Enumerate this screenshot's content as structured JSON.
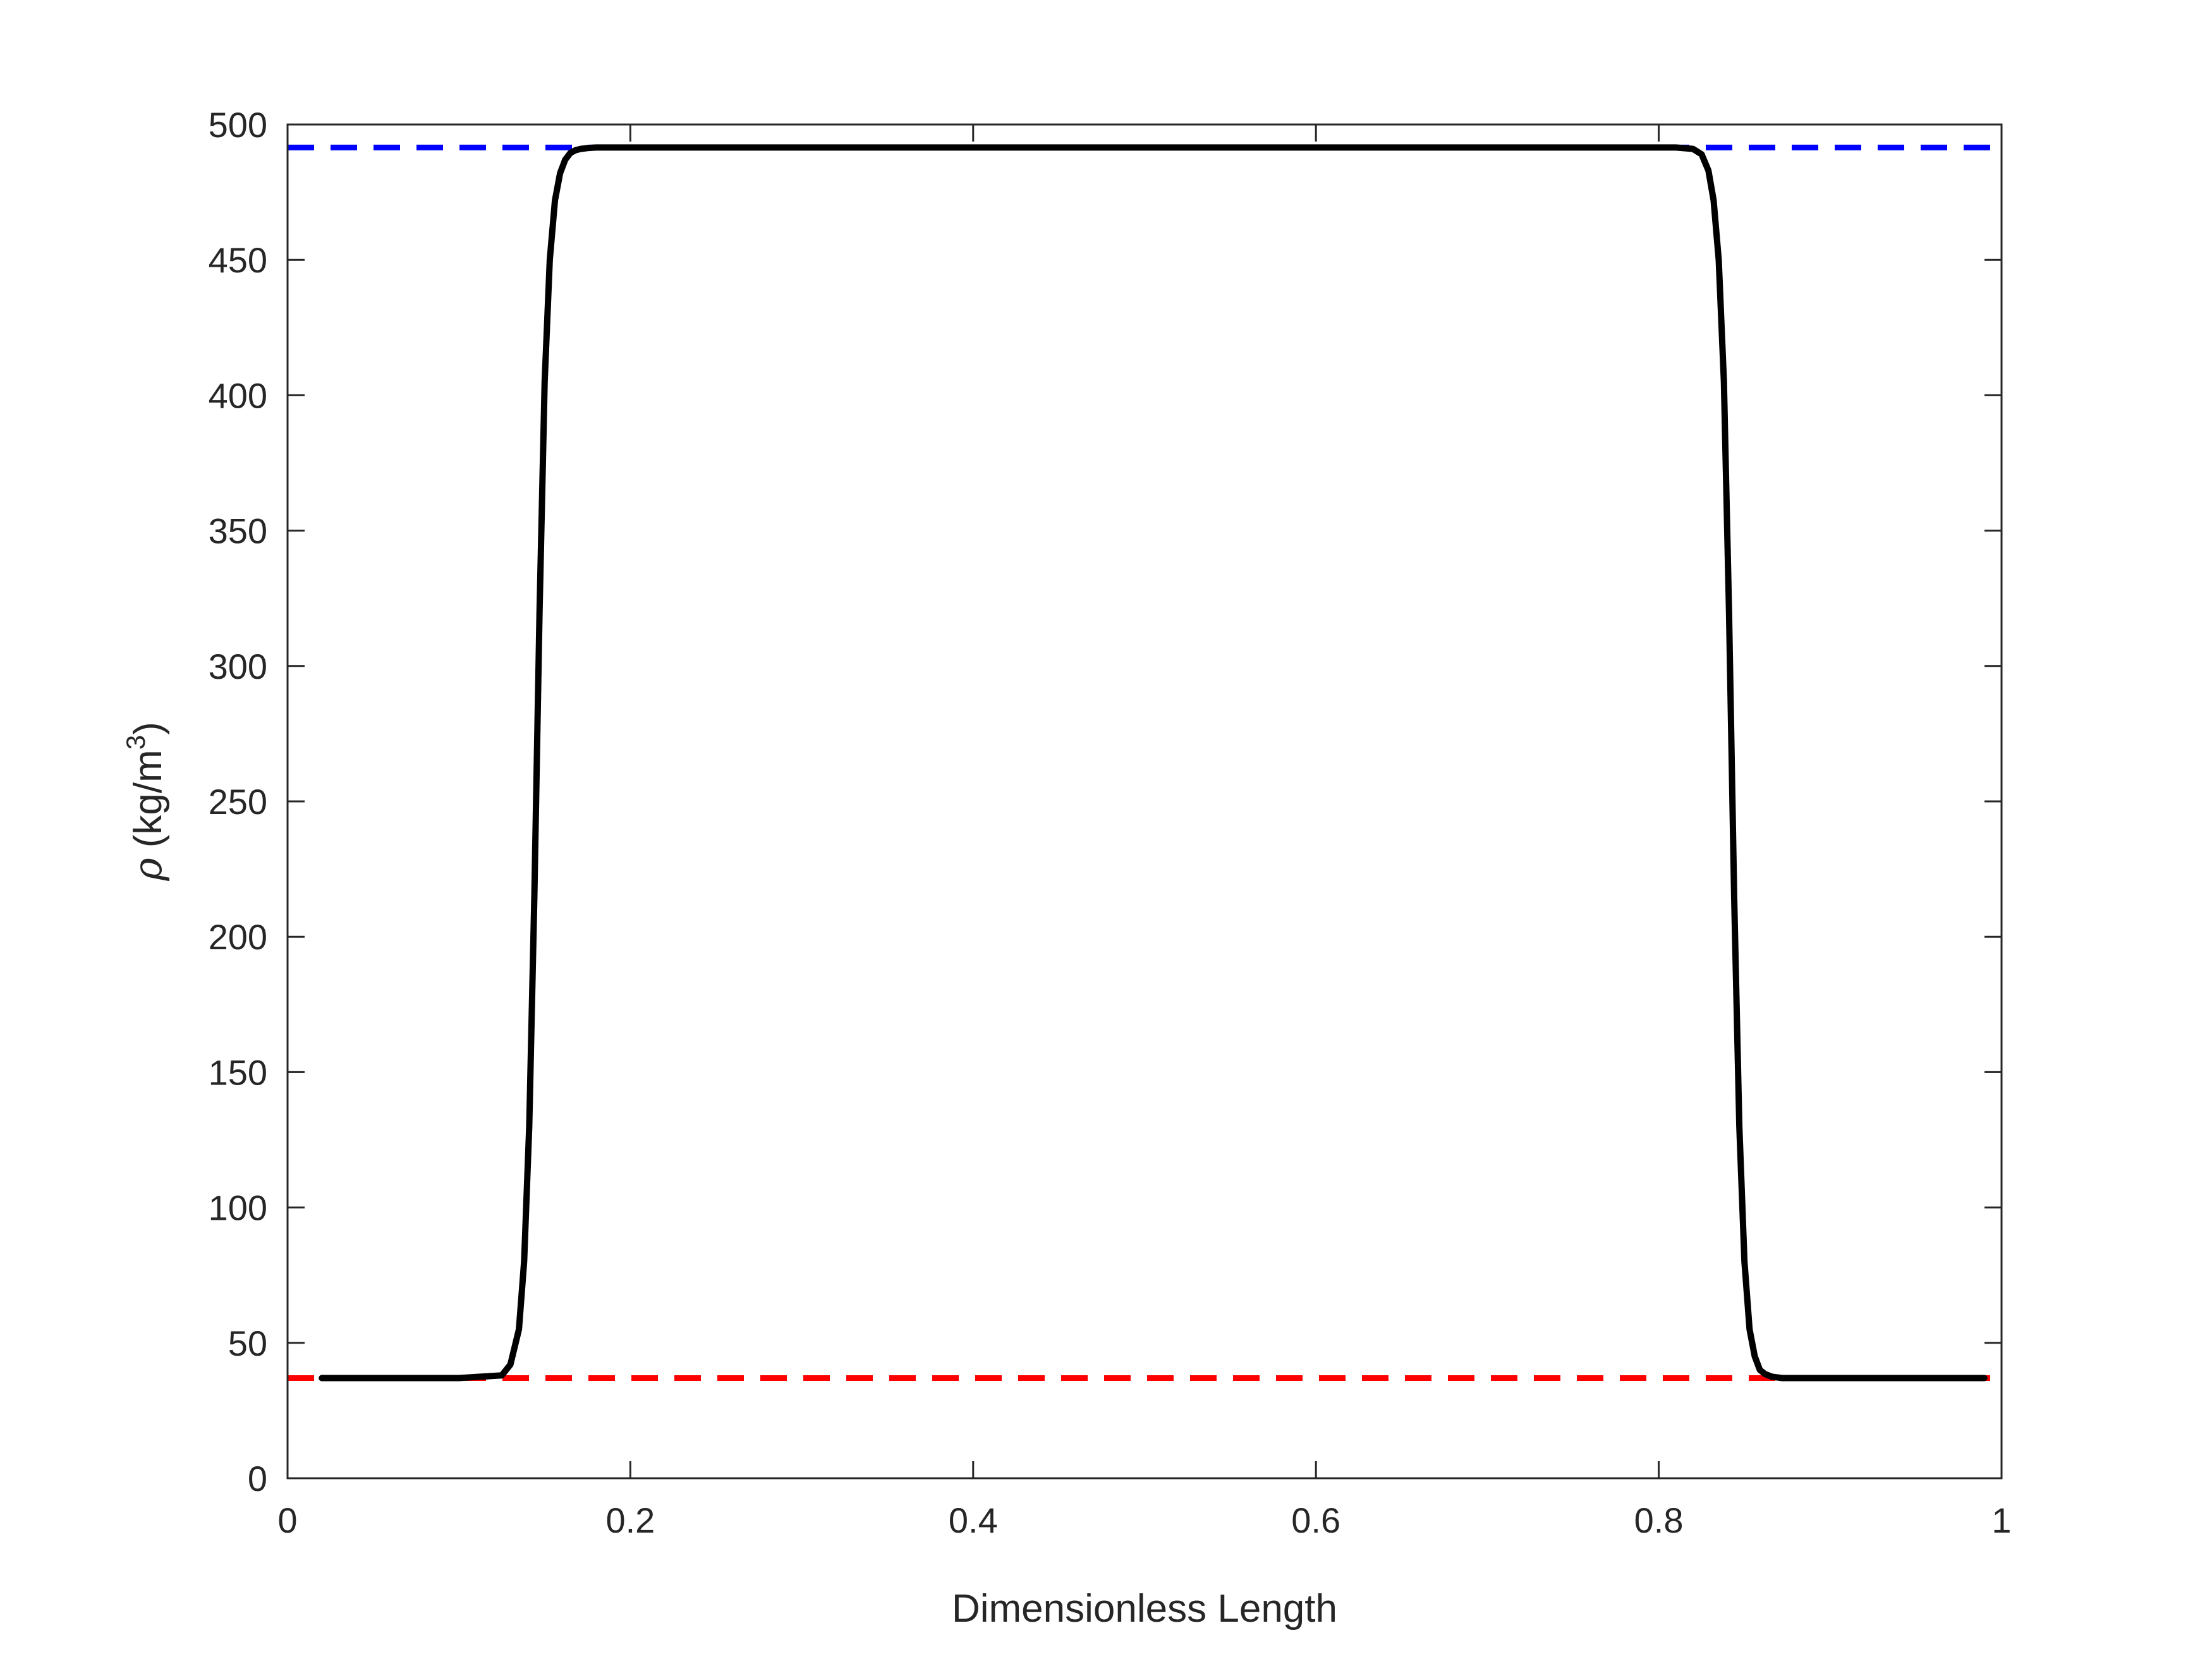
{
  "chart_data": {
    "type": "line",
    "xlabel": "Dimensionless Length",
    "ylabel": {
      "symbol": "ρ",
      "unit_prefix": "(kg/m",
      "unit_exponent": "3",
      "unit_suffix": ")"
    },
    "xlim": [
      0,
      1
    ],
    "ylim": [
      0,
      500
    ],
    "x_ticks": [
      0,
      0.2,
      0.4,
      0.6,
      0.8,
      1
    ],
    "x_tick_labels": [
      "0",
      "0.2",
      "0.4",
      "0.6",
      "0.8",
      "1"
    ],
    "y_ticks": [
      0,
      50,
      100,
      150,
      200,
      250,
      300,
      350,
      400,
      450,
      500
    ],
    "y_tick_labels": [
      "0",
      "50",
      "100",
      "150",
      "200",
      "250",
      "300",
      "350",
      "400",
      "450",
      "500"
    ],
    "grid": false,
    "reference_lines": [
      {
        "y": 491.5,
        "color": "#0000ff",
        "style": "dashed"
      },
      {
        "y": 37,
        "color": "#ff0000",
        "style": "dashed"
      }
    ],
    "series": [
      {
        "color": "#000000",
        "style": "solid",
        "x": [
          0.02,
          0.1,
          0.125,
          0.13,
          0.135,
          0.138,
          0.141,
          0.144,
          0.147,
          0.15,
          0.153,
          0.156,
          0.159,
          0.162,
          0.165,
          0.168,
          0.171,
          0.175,
          0.18,
          0.19,
          0.3,
          0.5,
          0.7,
          0.81,
          0.82,
          0.825,
          0.829,
          0.832,
          0.835,
          0.838,
          0.841,
          0.844,
          0.847,
          0.85,
          0.853,
          0.856,
          0.859,
          0.862,
          0.866,
          0.872,
          0.88,
          0.99
        ],
        "y": [
          37,
          37,
          38,
          42,
          55,
          80,
          130,
          215,
          320,
          405,
          450,
          472,
          482,
          487,
          489.5,
          490.5,
          491,
          491.3,
          491.5,
          491.5,
          491.5,
          491.5,
          491.5,
          491.5,
          491,
          489,
          483,
          472,
          450,
          405,
          320,
          215,
          130,
          80,
          55,
          45,
          40,
          38.5,
          37.5,
          37,
          37,
          37
        ]
      }
    ]
  }
}
